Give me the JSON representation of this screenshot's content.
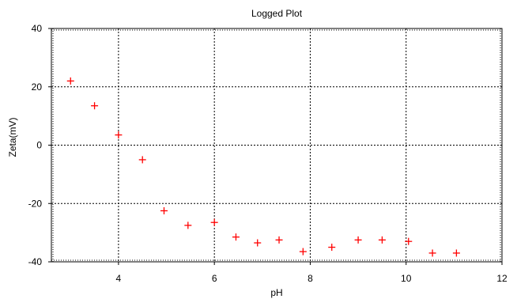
{
  "chart_data": {
    "type": "scatter",
    "title": "Logged Plot",
    "xlabel": "pH",
    "ylabel": "Zeta(mV)",
    "xlim": [
      2.6,
      12
    ],
    "ylim": [
      -40,
      40
    ],
    "x_ticks": [
      4,
      6,
      8,
      10,
      12
    ],
    "y_ticks": [
      -40,
      -20,
      0,
      20,
      40
    ],
    "grid": true,
    "marker": "plus",
    "marker_color": "#ff0000",
    "series": [
      {
        "x": [
          3.0,
          3.5,
          4.0,
          4.5,
          4.95,
          5.45,
          6.0,
          6.45,
          6.9,
          7.35,
          7.85,
          8.45,
          9.0,
          9.5,
          10.05,
          10.55,
          11.05
        ],
        "y": [
          22,
          13.5,
          3.5,
          -5,
          -22.5,
          -27.5,
          -26.5,
          -31.5,
          -33.5,
          -32.5,
          -36.5,
          -35,
          -32.5,
          -32.5,
          -33,
          -37,
          -37
        ]
      }
    ]
  }
}
